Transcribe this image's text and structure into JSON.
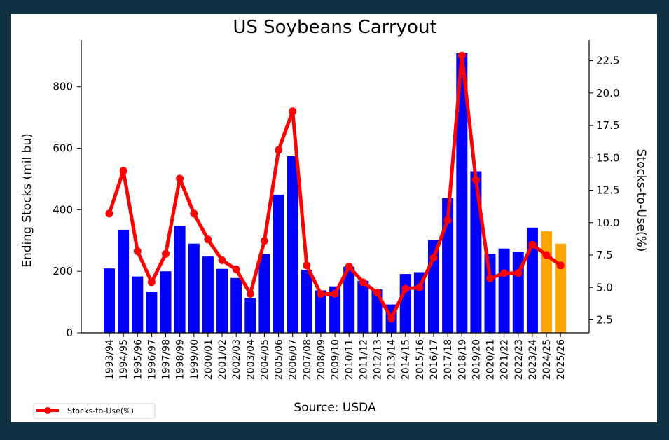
{
  "chart_data": {
    "type": "bar+line",
    "title": "US Soybeans Carryout",
    "footer": "Source: USDA",
    "categories": [
      "1993/94",
      "1994/95",
      "1995/96",
      "1996/97",
      "1997/98",
      "1998/99",
      "1999/00",
      "2000/01",
      "2001/02",
      "2002/03",
      "2003/04",
      "2004/05",
      "2005/06",
      "2006/07",
      "2007/08",
      "2008/09",
      "2009/10",
      "2010/11",
      "2011/12",
      "2012/13",
      "2013/14",
      "2014/15",
      "2015/16",
      "2016/17",
      "2017/18",
      "2018/19",
      "2019/20",
      "2020/21",
      "2021/22",
      "2022/23",
      "2023/24",
      "2024/25",
      "2025/26"
    ],
    "bars": {
      "values": [
        209,
        335,
        183,
        132,
        200,
        348,
        290,
        248,
        208,
        178,
        112,
        256,
        449,
        574,
        205,
        138,
        151,
        215,
        169,
        141,
        92,
        191,
        197,
        302,
        438,
        909,
        525,
        257,
        274,
        264,
        342,
        330,
        290
      ],
      "colors": [
        "#0000ff",
        "#0000ff",
        "#0000ff",
        "#0000ff",
        "#0000ff",
        "#0000ff",
        "#0000ff",
        "#0000ff",
        "#0000ff",
        "#0000ff",
        "#0000ff",
        "#0000ff",
        "#0000ff",
        "#0000ff",
        "#0000ff",
        "#0000ff",
        "#0000ff",
        "#0000ff",
        "#0000ff",
        "#0000ff",
        "#0000ff",
        "#0000ff",
        "#0000ff",
        "#0000ff",
        "#0000ff",
        "#0000ff",
        "#0000ff",
        "#0000ff",
        "#0000ff",
        "#0000ff",
        "#0000ff",
        "#ffa500",
        "#ffa500"
      ]
    },
    "line": {
      "name": "Stocks-to-Use(%)",
      "color": "#ff0000",
      "values": [
        10.7,
        14.0,
        7.8,
        5.4,
        7.6,
        13.4,
        10.7,
        8.7,
        7.1,
        6.4,
        4.5,
        8.6,
        15.6,
        18.6,
        6.7,
        4.5,
        4.5,
        6.6,
        5.4,
        4.6,
        2.6,
        4.9,
        5.0,
        7.3,
        10.2,
        22.9,
        13.3,
        5.7,
        6.1,
        6.1,
        8.3,
        7.5,
        6.7
      ]
    },
    "ylabel_left": "Ending Stocks (mil bu)",
    "ylabel_right": "Stocks-to-Use(%)",
    "ylim_left": [
      0,
      952
    ],
    "ylim_right": [
      1.5,
      24.1
    ],
    "yticks_left": [
      "0",
      "200",
      "400",
      "600",
      "800"
    ],
    "yticks_right": [
      "2.5",
      "5.0",
      "7.5",
      "10.0",
      "12.5",
      "15.0",
      "17.5",
      "20.0",
      "22.5"
    ],
    "grid": false,
    "legend_position": "bottom-left"
  }
}
